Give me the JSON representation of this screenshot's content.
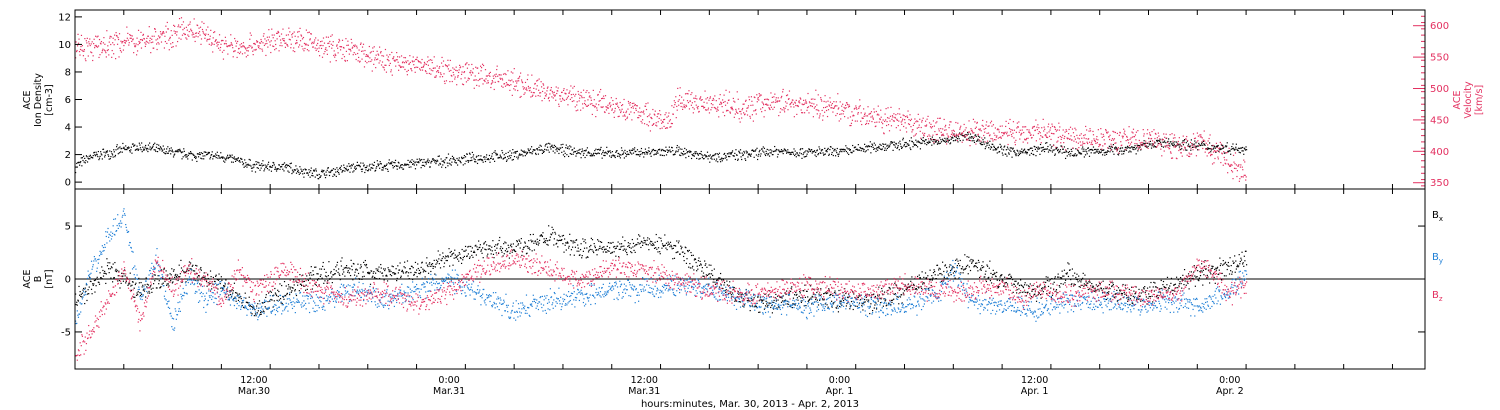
{
  "chart_data": [
    {
      "type": "scatter",
      "x_label": "hours:minutes, Mar. 30, 2013 - Apr. 2, 2013",
      "x_ticks": [
        {
          "t": 12,
          "time": "12:00",
          "date": "Mar.30"
        },
        {
          "t": 24,
          "time": "0:00",
          "date": "Mar.31"
        },
        {
          "t": 36,
          "time": "12:00",
          "date": "Mar.31"
        },
        {
          "t": 48,
          "time": "0:00",
          "date": "Apr. 1"
        },
        {
          "t": 60,
          "time": "12:00",
          "date": "Apr. 1"
        },
        {
          "t": 72,
          "time": "0:00",
          "date": "Apr. 2"
        }
      ],
      "x_range": [
        1,
        84
      ],
      "left_axis": {
        "label": [
          "ACE",
          "Ion Density",
          "[cm-3]"
        ],
        "ylim": [
          -0.5,
          12.5
        ],
        "ticks": [
          0,
          2,
          4,
          6,
          8,
          10,
          12
        ]
      },
      "right_axis": {
        "label": [
          "ACE",
          "Velocity",
          "[km/s]"
        ],
        "ylim": [
          340,
          625
        ],
        "ticks": [
          350,
          400,
          450,
          500,
          550,
          600
        ]
      },
      "series": [
        {
          "axis": "left",
          "color": "#000000",
          "keyframes": [
            [
              1,
              1.2
            ],
            [
              2,
              1.9
            ],
            [
              4,
              2.4
            ],
            [
              5,
              2.6
            ],
            [
              8,
              2.0
            ],
            [
              10,
              1.9
            ],
            [
              12,
              1.2
            ],
            [
              14,
              1.1
            ],
            [
              16,
              0.6
            ],
            [
              18,
              1.1
            ],
            [
              20,
              1.2
            ],
            [
              22,
              1.4
            ],
            [
              24,
              1.6
            ],
            [
              26,
              1.8
            ],
            [
              28,
              2.0
            ],
            [
              30,
              2.5
            ],
            [
              32,
              2.2
            ],
            [
              34,
              2.1
            ],
            [
              36,
              2.2
            ],
            [
              38,
              2.3
            ],
            [
              40,
              1.9
            ],
            [
              42,
              2.0
            ],
            [
              44,
              2.3
            ],
            [
              46,
              2.2
            ],
            [
              48,
              2.2
            ],
            [
              50,
              2.6
            ],
            [
              52,
              2.8
            ],
            [
              54,
              3.0
            ],
            [
              56,
              3.4
            ],
            [
              58,
              2.3
            ],
            [
              59.5,
              2.2
            ],
            [
              60.5,
              2.5
            ],
            [
              62,
              2.2
            ],
            [
              64,
              2.3
            ],
            [
              66,
              2.5
            ],
            [
              67.5,
              2.9
            ],
            [
              69,
              2.8
            ],
            [
              72,
              2.5
            ],
            [
              73,
              2.5
            ]
          ]
        },
        {
          "axis": "right",
          "color": "#e33060",
          "keyframes": [
            [
              1,
              570
            ],
            [
              2,
              565
            ],
            [
              4,
              575
            ],
            [
              6,
              580
            ],
            [
              8,
              595
            ],
            [
              9,
              585
            ],
            [
              10,
              570
            ],
            [
              11,
              565
            ],
            [
              12,
              570
            ],
            [
              14,
              580
            ],
            [
              16,
              570
            ],
            [
              18,
              560
            ],
            [
              20,
              545
            ],
            [
              24,
              530
            ],
            [
              28,
              510
            ],
            [
              30,
              495
            ],
            [
              32,
              485
            ],
            [
              34,
              475
            ],
            [
              36,
              460
            ],
            [
              37.5,
              445
            ],
            [
              38,
              480
            ],
            [
              40,
              480
            ],
            [
              42,
              470
            ],
            [
              44,
              480
            ],
            [
              46,
              475
            ],
            [
              48,
              470
            ],
            [
              50,
              455
            ],
            [
              52,
              445
            ],
            [
              54,
              435
            ],
            [
              56,
              430
            ],
            [
              58,
              430
            ],
            [
              60,
              435
            ],
            [
              61,
              430
            ],
            [
              62,
              425
            ],
            [
              64,
              420
            ],
            [
              66,
              420
            ],
            [
              68,
              415
            ],
            [
              69.5,
              405
            ],
            [
              70,
              420
            ],
            [
              71,
              400
            ],
            [
              72,
              380
            ],
            [
              73,
              370
            ]
          ]
        }
      ]
    },
    {
      "type": "scatter",
      "y_label": [
        "ACE",
        "B",
        "[nT]"
      ],
      "ylim": [
        -8.5,
        8.5
      ],
      "y_ticks": [
        -5,
        0,
        5
      ],
      "legend": [
        {
          "label": "Bx",
          "color": "#000000"
        },
        {
          "label": "By",
          "color": "#1f7fd6"
        },
        {
          "label": "Bz",
          "color": "#e33060"
        }
      ],
      "series": [
        {
          "name": "Bx",
          "color": "#000000",
          "keyframes": [
            [
              1,
              -2.0
            ],
            [
              3,
              1.0
            ],
            [
              5,
              -1.0
            ],
            [
              8,
              1.0
            ],
            [
              10,
              -0.5
            ],
            [
              12,
              -3.0
            ],
            [
              14,
              -1.0
            ],
            [
              16,
              0.5
            ],
            [
              18,
              1.0
            ],
            [
              20,
              0.5
            ],
            [
              22,
              1.0
            ],
            [
              24,
              2.0
            ],
            [
              26,
              3.0
            ],
            [
              28,
              3.0
            ],
            [
              30,
              4.0
            ],
            [
              32,
              3.0
            ],
            [
              34,
              3.0
            ],
            [
              36,
              3.5
            ],
            [
              38,
              3.0
            ],
            [
              40,
              0.5
            ],
            [
              42,
              -2.0
            ],
            [
              44,
              -2.0
            ],
            [
              46,
              -1.5
            ],
            [
              48,
              -2.0
            ],
            [
              50,
              -2.0
            ],
            [
              52,
              -1.0
            ],
            [
              54,
              0.5
            ],
            [
              56,
              1.5
            ],
            [
              58,
              0.0
            ],
            [
              60,
              -1.0
            ],
            [
              61,
              -0.5
            ],
            [
              62,
              0.5
            ],
            [
              64,
              -1.0
            ],
            [
              66,
              -1.5
            ],
            [
              68,
              -1.0
            ],
            [
              70,
              0.5
            ],
            [
              72,
              1.0
            ],
            [
              73,
              2.0
            ]
          ]
        },
        {
          "name": "By",
          "color": "#1f7fd6",
          "keyframes": [
            [
              1,
              -4.0
            ],
            [
              2,
              1.0
            ],
            [
              3,
              4.0
            ],
            [
              4,
              6.0
            ],
            [
              5,
              -2.0
            ],
            [
              6,
              2.0
            ],
            [
              7,
              -4.0
            ],
            [
              8,
              0.0
            ],
            [
              9,
              -2.0
            ],
            [
              10,
              -1.0
            ],
            [
              12,
              -3.0
            ],
            [
              14,
              -2.0
            ],
            [
              16,
              -2.0
            ],
            [
              18,
              -1.0
            ],
            [
              20,
              -2.0
            ],
            [
              22,
              -1.0
            ],
            [
              24,
              0.0
            ],
            [
              26,
              -1.5
            ],
            [
              28,
              -3.0
            ],
            [
              30,
              -2.0
            ],
            [
              32,
              -1.5
            ],
            [
              34,
              -1.0
            ],
            [
              36,
              -1.0
            ],
            [
              38,
              -0.5
            ],
            [
              40,
              -1.0
            ],
            [
              42,
              -2.0
            ],
            [
              44,
              -2.5
            ],
            [
              46,
              -2.5
            ],
            [
              48,
              -2.0
            ],
            [
              50,
              -2.5
            ],
            [
              52,
              -2.5
            ],
            [
              54,
              -1.5
            ],
            [
              55,
              1.0
            ],
            [
              56,
              -2.0
            ],
            [
              58,
              -2.5
            ],
            [
              60,
              -3.0
            ],
            [
              62,
              -2.0
            ],
            [
              64,
              -2.0
            ],
            [
              66,
              -2.5
            ],
            [
              68,
              -2.0
            ],
            [
              70,
              -2.5
            ],
            [
              72,
              -1.0
            ],
            [
              73,
              0.5
            ]
          ]
        },
        {
          "name": "Bz",
          "color": "#e33060",
          "keyframes": [
            [
              1,
              -7.0
            ],
            [
              2,
              -5.0
            ],
            [
              3,
              -2.0
            ],
            [
              4,
              1.0
            ],
            [
              5,
              -4.0
            ],
            [
              6,
              2.0
            ],
            [
              7,
              -1.0
            ],
            [
              8,
              1.0
            ],
            [
              9,
              0.0
            ],
            [
              10,
              -2.0
            ],
            [
              11,
              1.0
            ],
            [
              12,
              -1.0
            ],
            [
              14,
              1.0
            ],
            [
              16,
              -1.0
            ],
            [
              18,
              -2.0
            ],
            [
              20,
              -1.0
            ],
            [
              22,
              -2.5
            ],
            [
              24,
              -1.0
            ],
            [
              26,
              1.0
            ],
            [
              28,
              2.0
            ],
            [
              30,
              1.0
            ],
            [
              32,
              0.0
            ],
            [
              34,
              1.0
            ],
            [
              36,
              1.0
            ],
            [
              38,
              0.0
            ],
            [
              40,
              -1.0
            ],
            [
              42,
              -1.5
            ],
            [
              44,
              -1.0
            ],
            [
              46,
              -0.5
            ],
            [
              48,
              -1.0
            ],
            [
              50,
              -1.0
            ],
            [
              52,
              -0.5
            ],
            [
              54,
              -1.0
            ],
            [
              56,
              -1.0
            ],
            [
              58,
              -0.5
            ],
            [
              59,
              -2.0
            ],
            [
              60,
              -1.0
            ],
            [
              62,
              -1.5
            ],
            [
              64,
              -1.0
            ],
            [
              66,
              -1.5
            ],
            [
              68,
              -1.5
            ],
            [
              69,
              -1.0
            ],
            [
              70,
              1.5
            ],
            [
              71,
              0.5
            ],
            [
              72,
              -1.5
            ],
            [
              73,
              -0.5
            ]
          ]
        }
      ]
    }
  ]
}
